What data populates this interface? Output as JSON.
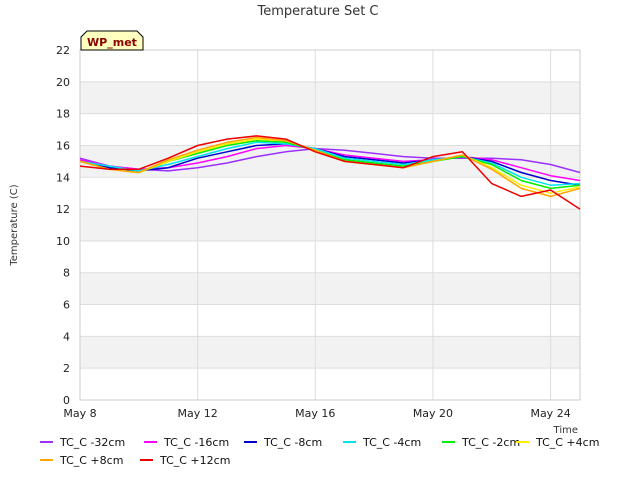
{
  "chart_data": {
    "type": "line",
    "title": "Temperature Set C",
    "xlabel": "Time",
    "ylabel": "Temperature (C)",
    "badge": "WP_met",
    "x_unit": "days",
    "xlim": [
      "2024-05-08",
      "2024-05-25"
    ],
    "ylim": [
      0,
      22
    ],
    "yticks": [
      0,
      2,
      4,
      6,
      8,
      10,
      12,
      14,
      16,
      18,
      20,
      22
    ],
    "xticks": [
      {
        "date": "2024-05-08",
        "label": "May 8"
      },
      {
        "date": "2024-05-12",
        "label": "May 12"
      },
      {
        "date": "2024-05-16",
        "label": "May 16"
      },
      {
        "date": "2024-05-20",
        "label": "May 20"
      },
      {
        "date": "2024-05-24",
        "label": "May 24"
      }
    ],
    "grid": true,
    "legend_position": "bottom",
    "series": [
      {
        "name": "TC_C -32cm",
        "color": "#9b30ff",
        "points": [
          [
            "2024-05-08",
            15.2
          ],
          [
            "2024-05-09",
            14.7
          ],
          [
            "2024-05-10",
            14.5
          ],
          [
            "2024-05-11",
            14.4
          ],
          [
            "2024-05-12",
            14.6
          ],
          [
            "2024-05-13",
            14.9
          ],
          [
            "2024-05-14",
            15.3
          ],
          [
            "2024-05-15",
            15.6
          ],
          [
            "2024-05-16",
            15.8
          ],
          [
            "2024-05-17",
            15.7
          ],
          [
            "2024-05-18",
            15.5
          ],
          [
            "2024-05-19",
            15.3
          ],
          [
            "2024-05-20",
            15.2
          ],
          [
            "2024-05-21",
            15.2
          ],
          [
            "2024-05-22",
            15.2
          ],
          [
            "2024-05-23",
            15.1
          ],
          [
            "2024-05-24",
            14.8
          ],
          [
            "2024-05-25",
            14.3
          ]
        ]
      },
      {
        "name": "TC_C -16cm",
        "color": "#ff00ff",
        "points": [
          [
            "2024-05-08",
            15.1
          ],
          [
            "2024-05-09",
            14.7
          ],
          [
            "2024-05-10",
            14.5
          ],
          [
            "2024-05-11",
            14.6
          ],
          [
            "2024-05-12",
            14.9
          ],
          [
            "2024-05-13",
            15.3
          ],
          [
            "2024-05-14",
            15.8
          ],
          [
            "2024-05-15",
            16.0
          ],
          [
            "2024-05-16",
            15.8
          ],
          [
            "2024-05-17",
            15.4
          ],
          [
            "2024-05-18",
            15.2
          ],
          [
            "2024-05-19",
            15.0
          ],
          [
            "2024-05-20",
            15.1
          ],
          [
            "2024-05-21",
            15.3
          ],
          [
            "2024-05-22",
            15.1
          ],
          [
            "2024-05-23",
            14.6
          ],
          [
            "2024-05-24",
            14.1
          ],
          [
            "2024-05-25",
            13.8
          ]
        ]
      },
      {
        "name": "TC_C -8cm",
        "color": "#0000cd",
        "points": [
          [
            "2024-05-08",
            15.0
          ],
          [
            "2024-05-09",
            14.6
          ],
          [
            "2024-05-10",
            14.4
          ],
          [
            "2024-05-11",
            14.6
          ],
          [
            "2024-05-12",
            15.2
          ],
          [
            "2024-05-13",
            15.6
          ],
          [
            "2024-05-14",
            16.0
          ],
          [
            "2024-05-15",
            16.1
          ],
          [
            "2024-05-16",
            15.8
          ],
          [
            "2024-05-17",
            15.3
          ],
          [
            "2024-05-18",
            15.1
          ],
          [
            "2024-05-19",
            14.9
          ],
          [
            "2024-05-20",
            15.1
          ],
          [
            "2024-05-21",
            15.3
          ],
          [
            "2024-05-22",
            15.0
          ],
          [
            "2024-05-23",
            14.3
          ],
          [
            "2024-05-24",
            13.8
          ],
          [
            "2024-05-25",
            13.5
          ]
        ]
      },
      {
        "name": "TC_C -4cm",
        "color": "#00e5ee",
        "points": [
          [
            "2024-05-08",
            15.0
          ],
          [
            "2024-05-09",
            14.7
          ],
          [
            "2024-05-10",
            14.4
          ],
          [
            "2024-05-11",
            14.8
          ],
          [
            "2024-05-12",
            15.3
          ],
          [
            "2024-05-13",
            15.8
          ],
          [
            "2024-05-14",
            16.2
          ],
          [
            "2024-05-15",
            16.1
          ],
          [
            "2024-05-16",
            15.8
          ],
          [
            "2024-05-17",
            15.2
          ],
          [
            "2024-05-18",
            15.0
          ],
          [
            "2024-05-19",
            14.8
          ],
          [
            "2024-05-20",
            15.1
          ],
          [
            "2024-05-21",
            15.3
          ],
          [
            "2024-05-22",
            14.9
          ],
          [
            "2024-05-23",
            14.0
          ],
          [
            "2024-05-24",
            13.5
          ],
          [
            "2024-05-25",
            13.6
          ]
        ]
      },
      {
        "name": "TC_C -2cm",
        "color": "#00ee00",
        "points": [
          [
            "2024-05-08",
            15.0
          ],
          [
            "2024-05-09",
            14.5
          ],
          [
            "2024-05-10",
            14.3
          ],
          [
            "2024-05-11",
            15.0
          ],
          [
            "2024-05-12",
            15.5
          ],
          [
            "2024-05-13",
            16.0
          ],
          [
            "2024-05-14",
            16.3
          ],
          [
            "2024-05-15",
            16.2
          ],
          [
            "2024-05-16",
            15.7
          ],
          [
            "2024-05-17",
            15.1
          ],
          [
            "2024-05-18",
            14.9
          ],
          [
            "2024-05-19",
            14.7
          ],
          [
            "2024-05-20",
            15.0
          ],
          [
            "2024-05-21",
            15.3
          ],
          [
            "2024-05-22",
            14.8
          ],
          [
            "2024-05-23",
            13.8
          ],
          [
            "2024-05-24",
            13.3
          ],
          [
            "2024-05-25",
            13.5
          ]
        ]
      },
      {
        "name": "TC_C +4cm",
        "color": "#ffee00",
        "points": [
          [
            "2024-05-08",
            15.0
          ],
          [
            "2024-05-09",
            14.5
          ],
          [
            "2024-05-10",
            14.3
          ],
          [
            "2024-05-11",
            15.0
          ],
          [
            "2024-05-12",
            15.6
          ],
          [
            "2024-05-13",
            16.1
          ],
          [
            "2024-05-14",
            16.4
          ],
          [
            "2024-05-15",
            16.3
          ],
          [
            "2024-05-16",
            15.7
          ],
          [
            "2024-05-17",
            15.0
          ],
          [
            "2024-05-18",
            14.8
          ],
          [
            "2024-05-19",
            14.6
          ],
          [
            "2024-05-20",
            15.0
          ],
          [
            "2024-05-21",
            15.4
          ],
          [
            "2024-05-22",
            14.6
          ],
          [
            "2024-05-23",
            13.5
          ],
          [
            "2024-05-24",
            13.0
          ],
          [
            "2024-05-25",
            13.4
          ]
        ]
      },
      {
        "name": "TC_C +8cm",
        "color": "#ffa500",
        "points": [
          [
            "2024-05-08",
            15.0
          ],
          [
            "2024-05-09",
            14.5
          ],
          [
            "2024-05-10",
            14.3
          ],
          [
            "2024-05-11",
            15.1
          ],
          [
            "2024-05-12",
            15.7
          ],
          [
            "2024-05-13",
            16.2
          ],
          [
            "2024-05-14",
            16.5
          ],
          [
            "2024-05-15",
            16.3
          ],
          [
            "2024-05-16",
            15.7
          ],
          [
            "2024-05-17",
            15.0
          ],
          [
            "2024-05-18",
            14.8
          ],
          [
            "2024-05-19",
            14.6
          ],
          [
            "2024-05-20",
            15.0
          ],
          [
            "2024-05-21",
            15.4
          ],
          [
            "2024-05-22",
            14.5
          ],
          [
            "2024-05-23",
            13.3
          ],
          [
            "2024-05-24",
            12.8
          ],
          [
            "2024-05-25",
            13.3
          ]
        ]
      },
      {
        "name": "TC_C +12cm",
        "color": "#ee0000",
        "points": [
          [
            "2024-05-08",
            14.7
          ],
          [
            "2024-05-09",
            14.5
          ],
          [
            "2024-05-10",
            14.5
          ],
          [
            "2024-05-11",
            15.2
          ],
          [
            "2024-05-12",
            16.0
          ],
          [
            "2024-05-13",
            16.4
          ],
          [
            "2024-05-14",
            16.6
          ],
          [
            "2024-05-15",
            16.4
          ],
          [
            "2024-05-16",
            15.6
          ],
          [
            "2024-05-17",
            15.0
          ],
          [
            "2024-05-18",
            14.8
          ],
          [
            "2024-05-19",
            14.6
          ],
          [
            "2024-05-20",
            15.3
          ],
          [
            "2024-05-21",
            15.6
          ],
          [
            "2024-05-22",
            13.6
          ],
          [
            "2024-05-23",
            12.8
          ],
          [
            "2024-05-24",
            13.2
          ],
          [
            "2024-05-25",
            12.0
          ]
        ]
      }
    ]
  }
}
